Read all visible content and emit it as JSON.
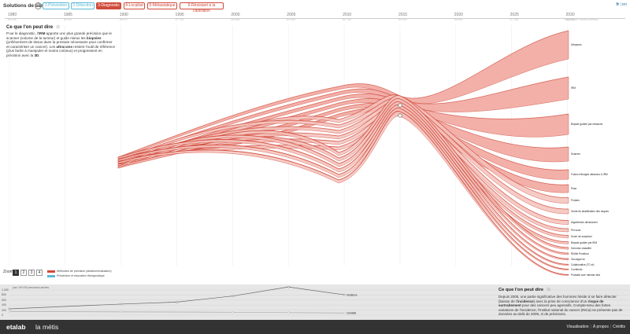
{
  "app": {
    "title": "Solutions de santé",
    "help": "?"
  },
  "steps": [
    {
      "label": "1-Prévention",
      "color": "#5ab8d6",
      "active": false
    },
    {
      "label": "2-Détection",
      "color": "#5ab8d6",
      "active": false
    },
    {
      "label": "3-Diagnostic",
      "color": "#d04a3a",
      "active": true
    },
    {
      "label": "4-Localisé",
      "color": "#d04a3a",
      "active": false
    },
    {
      "label": "5-Métastatique",
      "color": "#d04a3a",
      "active": false
    },
    {
      "label": "6-Résistant à la castration",
      "color": "#d04a3a",
      "active": false
    }
  ],
  "lang": {
    "fr": "fr",
    "en": "en"
  },
  "timeline": {
    "years": [
      "1980",
      "1985",
      "1990",
      "1995",
      "2000",
      "2005",
      "2010",
      "2015",
      "2020",
      "2025",
      "2030"
    ],
    "sub": [
      "54 028",
      "55 157",
      "56 577",
      "57 753",
      "58 858",
      "60 963",
      "62 765",
      "64 300",
      "65 900",
      "67 393",
      "68 532"
    ],
    "pop_note": "Population France (milliers)"
  },
  "section": {
    "title": "Ce que l'on peut dire",
    "p1": "Pour le diagnostic, l'",
    "b1": "IRM",
    "p2": " apporte une plus grande précision que le scanner (volume de la tumeur) et guide mieux les ",
    "b2": "biopsies",
    "p3": " (prélèvement de tissus dans la prostate nécessaire pour confirmer et caractériser un cancer). Les ",
    "b3": "ultrasons",
    "p4": " restent l'outil de référence (plus facile à manipuler et moins coûteux) et progressent en précision avec la ",
    "b4": "3D",
    "p5": "."
  },
  "labels": [
    "Ultrasons",
    "IRM",
    "Biopsie guidée par ultrasons",
    "Scanner",
    "Fusion d'images ultrasons & IRM",
    "Prise",
    "Prolaris",
    "Guide de stratification des risques",
    "Algorithmes décisionnel",
    "Pet scan",
    "Score de suspicion",
    "Biopsie guidée par IRM",
    "Genomic classifier",
    "RNAlk Prostfour",
    "Oncotype dx",
    "Collaborative (TC et)",
    "Confirmdx",
    "Prostate core mitomic test"
  ],
  "zoom": {
    "label": "Zoom",
    "buttons": [
      "1",
      "2",
      "3",
      "4"
    ],
    "active": "1"
  },
  "legend": [
    {
      "label": "Méthodes de précision (ablation/évaluation)",
      "color": "#d04a3a"
    },
    {
      "label": "Prévention et éducation thérapeutique",
      "color": "#5ab8d6"
    }
  ],
  "bottom_chart": {
    "unit_label": "pour 100 000 personnes-années",
    "yticks": [
      "1,000",
      "800",
      "600",
      "400",
      "200",
      "0"
    ],
    "incidence_label": "incidence",
    "mortality_label": "mortalité",
    "incidence": [
      {
        "year": 1980,
        "v": 250
      },
      {
        "year": 1990,
        "v": 440
      },
      {
        "year": 1995,
        "v": 520
      },
      {
        "year": 2000,
        "v": 760
      },
      {
        "year": 2005,
        "v": 1120
      },
      {
        "year": 2010,
        "v": 810
      }
    ],
    "mortality": [
      {
        "year": 1980,
        "v": 140
      },
      {
        "year": 1990,
        "v": 130
      },
      {
        "year": 1995,
        "v": 125
      },
      {
        "year": 2000,
        "v": 115
      },
      {
        "year": 2005,
        "v": 100
      },
      {
        "year": 2010,
        "v": 85
      }
    ]
  },
  "info": {
    "title": "Ce que l'on peut dire",
    "p1": "Depuis 2005, une partie significative des hommes hésite à se faire détecter (baisse de l'",
    "b1": "incidence",
    "p2": ") avec la prise de conscience d'un ",
    "b2": "risque de surtraitement",
    "p3": " pour des cancers peu agressifs. Compte-tenu des fortes variations de l'incidence, l'Institut national du cancer (INCa) ne présente pas de données au-delà de 2009, ni de prévisions."
  },
  "footer": {
    "logo1": "etalab",
    "logo2": "la métis",
    "nav": [
      "Visualisation",
      "À propos",
      "Crédits"
    ]
  }
}
